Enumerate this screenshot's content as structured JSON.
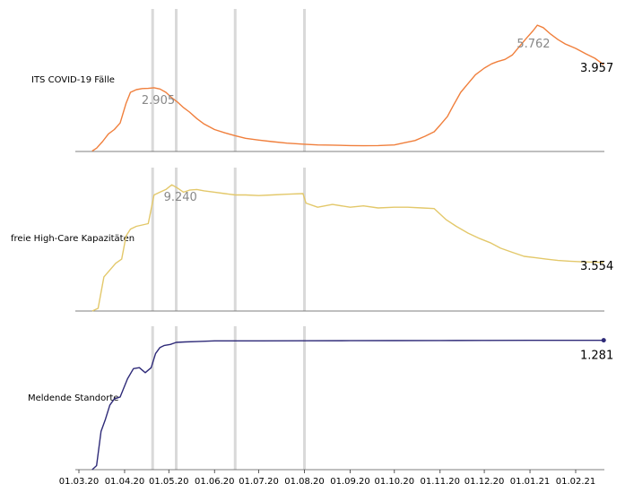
{
  "chart_data": {
    "type": "line",
    "x_ticks": [
      "01.03.20",
      "01.04.20",
      "01.05.20",
      "01.06.20",
      "01.07.20",
      "01.08.20",
      "01.09.20",
      "01.10.20",
      "01.11.20",
      "01.12.20",
      "01.01.21",
      "01.02.21"
    ],
    "x_range": [
      "2020-03-01",
      "2021-02-28"
    ],
    "event_dates": [
      "2020-04-20",
      "2020-05-06",
      "2020-06-15",
      "2020-08-01"
    ],
    "panels": [
      {
        "label": "ITS COVID-19 Fälle",
        "color": "#f07f3c",
        "ylim": [
          0,
          6500
        ],
        "peak_label": "2.905",
        "peak_point": [
          "2020-04-18",
          2905
        ],
        "end_label": "3.957",
        "end_point": [
          "2021-02-20",
          3957
        ],
        "second_peak_label": "5.762",
        "second_peak_point": [
          "2021-01-03",
          5762
        ],
        "series": {
          "x": [
            "2020-03-10",
            "2020-03-13",
            "2020-03-17",
            "2020-03-21",
            "2020-03-25",
            "2020-03-29",
            "2020-04-02",
            "2020-04-05",
            "2020-04-09",
            "2020-04-13",
            "2020-04-17",
            "2020-04-21",
            "2020-04-25",
            "2020-04-29",
            "2020-05-03",
            "2020-05-07",
            "2020-05-11",
            "2020-05-15",
            "2020-05-20",
            "2020-05-25",
            "2020-06-01",
            "2020-06-08",
            "2020-06-15",
            "2020-06-22",
            "2020-07-01",
            "2020-07-10",
            "2020-07-20",
            "2020-08-01",
            "2020-08-10",
            "2020-08-20",
            "2020-09-01",
            "2020-09-10",
            "2020-09-20",
            "2020-10-01",
            "2020-10-08",
            "2020-10-15",
            "2020-10-22",
            "2020-10-28",
            "2020-11-01",
            "2020-11-06",
            "2020-11-10",
            "2020-11-15",
            "2020-11-20",
            "2020-11-25",
            "2020-12-01",
            "2020-12-06",
            "2020-12-10",
            "2020-12-15",
            "2020-12-20",
            "2020-12-25",
            "2020-12-30",
            "2021-01-03",
            "2021-01-06",
            "2021-01-10",
            "2021-01-15",
            "2021-01-20",
            "2021-01-25",
            "2021-02-01",
            "2021-02-08",
            "2021-02-14",
            "2021-02-20"
          ],
          "y": [
            20,
            150,
            450,
            800,
            1000,
            1300,
            2200,
            2700,
            2820,
            2870,
            2880,
            2905,
            2850,
            2700,
            2450,
            2250,
            2000,
            1800,
            1500,
            1250,
            1000,
            850,
            720,
            600,
            520,
            450,
            380,
            330,
            300,
            290,
            270,
            260,
            270,
            300,
            400,
            500,
            700,
            900,
            1200,
            1600,
            2100,
            2700,
            3100,
            3500,
            3800,
            4000,
            4100,
            4200,
            4400,
            4800,
            5200,
            5500,
            5762,
            5650,
            5350,
            5100,
            4900,
            4700,
            4450,
            4250,
            3957
          ]
        }
      },
      {
        "label": "freie High-Care Kapazitäten",
        "color": "#e3c86a",
        "ylim": [
          0,
          10500
        ],
        "peak_label": "9.240",
        "peak_point": [
          "2020-05-03",
          9240
        ],
        "end_label": "3.554",
        "end_point": [
          "2021-02-20",
          3554
        ],
        "series": {
          "x": [
            "2020-03-10",
            "2020-03-14",
            "2020-03-18",
            "2020-03-22",
            "2020-03-26",
            "2020-03-30",
            "2020-04-02",
            "2020-04-05",
            "2020-04-09",
            "2020-04-13",
            "2020-04-17",
            "2020-04-21",
            "2020-04-25",
            "2020-04-29",
            "2020-05-03",
            "2020-05-07",
            "2020-05-11",
            "2020-05-15",
            "2020-05-20",
            "2020-05-25",
            "2020-06-01",
            "2020-06-08",
            "2020-06-15",
            "2020-06-22",
            "2020-07-01",
            "2020-07-10",
            "2020-07-20",
            "2020-07-31",
            "2020-08-02",
            "2020-08-10",
            "2020-08-20",
            "2020-09-01",
            "2020-09-10",
            "2020-09-20",
            "2020-10-01",
            "2020-10-10",
            "2020-10-20",
            "2020-10-28",
            "2020-11-05",
            "2020-11-12",
            "2020-11-20",
            "2020-11-28",
            "2020-12-05",
            "2020-12-12",
            "2020-12-20",
            "2020-12-28",
            "2021-01-05",
            "2021-01-12",
            "2021-01-20",
            "2021-01-28",
            "2021-02-05",
            "2021-02-12",
            "2021-02-20"
          ],
          "y": [
            0,
            200,
            2500,
            3000,
            3500,
            3800,
            5500,
            6000,
            6200,
            6300,
            6400,
            8500,
            8700,
            8900,
            9240,
            9000,
            8700,
            8850,
            8900,
            8800,
            8700,
            8600,
            8500,
            8500,
            8450,
            8500,
            8550,
            8600,
            7900,
            7600,
            7800,
            7600,
            7700,
            7550,
            7600,
            7600,
            7550,
            7500,
            6700,
            6200,
            5700,
            5300,
            5000,
            4600,
            4300,
            4000,
            3900,
            3800,
            3700,
            3650,
            3600,
            3580,
            3554
          ]
        }
      },
      {
        "label": "Meldende Standorte",
        "color": "#2e2a78",
        "ylim": [
          0,
          1420
        ],
        "end_label": "1.281",
        "end_point": [
          "2021-02-20",
          1281
        ],
        "series": {
          "x": [
            "2020-03-10",
            "2020-03-13",
            "2020-03-16",
            "2020-03-19",
            "2020-03-22",
            "2020-03-25",
            "2020-03-29",
            "2020-04-03",
            "2020-04-07",
            "2020-04-11",
            "2020-04-15",
            "2020-04-19",
            "2020-04-22",
            "2020-04-25",
            "2020-04-28",
            "2020-05-02",
            "2020-05-06",
            "2020-05-12",
            "2020-05-20",
            "2020-06-01",
            "2020-06-15",
            "2020-07-01",
            "2020-08-01",
            "2020-09-01",
            "2020-10-01",
            "2020-11-01",
            "2020-12-01",
            "2021-01-01",
            "2021-02-01",
            "2021-02-20"
          ],
          "y": [
            0,
            40,
            380,
            500,
            640,
            700,
            720,
            900,
            1000,
            1010,
            960,
            1010,
            1150,
            1210,
            1230,
            1240,
            1260,
            1265,
            1268,
            1275,
            1275,
            1275,
            1276,
            1277,
            1278,
            1279,
            1280,
            1281,
            1281,
            1281
          ]
        }
      }
    ]
  }
}
